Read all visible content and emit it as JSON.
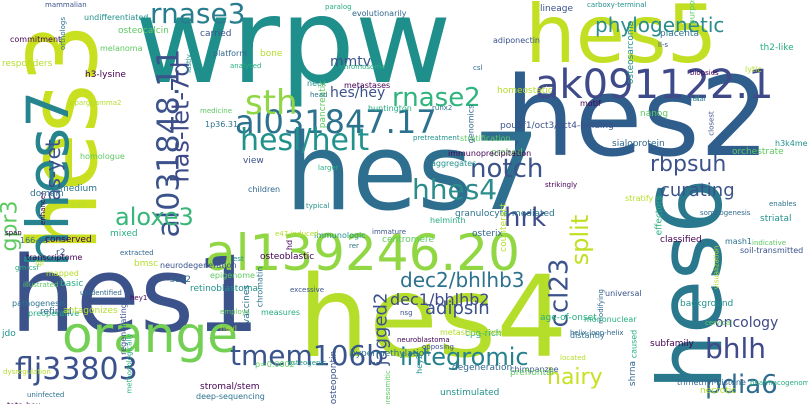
{
  "word_cloud": {
    "words": [
      {
        "text": "wrpw",
        "color": "#1f8f8c"
      },
      {
        "text": "hes2",
        "color": "#2f5d8c"
      },
      {
        "text": "hes4",
        "color": "#b5de2b"
      },
      {
        "text": "hes7",
        "color": "#2e6e8e"
      },
      {
        "text": "hes1",
        "color": "#3b528b"
      },
      {
        "text": "hes3",
        "color": "#c8e020"
      },
      {
        "text": "hes5",
        "color": "#c2df23"
      },
      {
        "text": "hes6",
        "color": "#2a788e"
      },
      {
        "text": "hhes7",
        "color": "#25848e"
      },
      {
        "text": "al139246.20",
        "color": "#90d743"
      },
      {
        "text": "orange",
        "color": "#73d055"
      },
      {
        "text": "ak091122.1",
        "color": "#3e4a89"
      },
      {
        "text": "al031847.17",
        "color": "#2c728e"
      },
      {
        "text": "al031848.11",
        "color": "#3b528b"
      },
      {
        "text": "hesl/helt",
        "color": "#21918c"
      },
      {
        "text": "sth",
        "color": "#8fd744"
      },
      {
        "text": "rnase3",
        "color": "#287d8e"
      },
      {
        "text": "rnase2",
        "color": "#30b47d"
      },
      {
        "text": "hhes4",
        "color": "#2c8c8c"
      },
      {
        "text": "flj33803",
        "color": "#3b518b"
      },
      {
        "text": "tmem106b",
        "color": "#39558c"
      },
      {
        "text": "integromic",
        "color": "#26818e"
      },
      {
        "text": "pdia6",
        "color": "#2f6c8e"
      },
      {
        "text": "ccl23",
        "color": "#3b528b"
      },
      {
        "text": "bhlh",
        "color": "#3e4a89"
      },
      {
        "text": "hrk",
        "color": "#3d4d8a"
      },
      {
        "text": "aloxe3",
        "color": "#37b679"
      },
      {
        "text": "split",
        "color": "#c2df23"
      },
      {
        "text": "notch",
        "color": "#3b528b"
      },
      {
        "text": "has-let-7d",
        "color": "#3e4989"
      },
      {
        "text": "hairy",
        "color": "#c7e020"
      },
      {
        "text": "gpr3",
        "color": "#5ec962"
      },
      {
        "text": "as-yet",
        "color": "#3b528b"
      },
      {
        "text": "rbpsuh",
        "color": "#3b528b"
      },
      {
        "text": "phylogenetic",
        "color": "#2c8c8c"
      },
      {
        "text": "curating",
        "color": "#3b528b"
      },
      {
        "text": "dec2/bhlhb3",
        "color": "#2c718e"
      },
      {
        "text": "dec1/bhlhb2",
        "color": "#3e4989"
      },
      {
        "text": "jagged2",
        "color": "#3b528b"
      },
      {
        "text": "adipsin",
        "color": "#3b528b"
      },
      {
        "text": "oncology",
        "color": "#3e4989"
      },
      {
        "text": "hes/hey",
        "color": "#3b528b"
      },
      {
        "text": "mmtv",
        "color": "#3b528b"
      }
    ],
    "minor_words": [
      "mammalian",
      "undifferentiated",
      "osteocalcin",
      "orthologs",
      "commitment",
      "responders",
      "paralog",
      "evolutionarily",
      "lineage",
      "carboxy-terminal",
      "purpose",
      "placenta",
      "biopsies",
      "lytic",
      "th2-like",
      "csl",
      "adiponectin",
      "osteosarcoma",
      "medicine",
      "1p36.31",
      "h3-lysine",
      "pparggamma2",
      "huntington",
      "sialoprotein",
      "closest",
      "h3k4me3",
      "nanog",
      "fetal",
      "motif",
      "homeostatic",
      "chromosome",
      "genomics",
      "pou5f1/oct3/oct4-binding",
      "pretreatment",
      "stratification",
      "granulocyte-mediated",
      "strikingly",
      "stratify",
      "effectors",
      "somitogenesis",
      "soil-transmitted",
      "striatal",
      "indicative",
      "mash1",
      "classified",
      "visualization",
      "helminth",
      "osterix",
      "immature",
      "immunologic",
      "centromere",
      "rer",
      "hd",
      "bmsc",
      "gm-csf",
      "166-aa",
      "r2",
      "est",
      "epigenome",
      "vaccines",
      "hey1",
      "heyl",
      "cpg-rich",
      "helix-loop-helix",
      "chimpanzee",
      "unstimulated",
      "presomitic",
      "deep-sequencing",
      "stromal/stem",
      "dysregulation",
      "preoperative",
      "refined",
      "nsg",
      "hey2",
      "prefrontal",
      "uninfected",
      "tata-box",
      "necrotic",
      "pharmacogenomic",
      "trimethyl-histone",
      "osteopontin",
      "osteogenic",
      "p=0.0002",
      "hypermethylation",
      "neuroblastoma",
      "metastasis-free",
      "age-of-onset",
      "modifying",
      "universal",
      "background",
      "cervical",
      "distantly",
      "subfamily",
      "located",
      "caused",
      "degeneration",
      "opposing",
      "aggregates",
      "probed",
      "runx2",
      "immunoprecipitation",
      "counteract",
      "larger",
      "children",
      "view",
      "typical",
      "homologue",
      "medium",
      "enhancer",
      "pair",
      "mixed",
      "extracted",
      "neurodegeneration",
      "retinoblastoma",
      "employs",
      "chromatin",
      "osteoblastic",
      "e47-induced",
      "measures",
      "sox2",
      "excessive",
      "neck",
      "pancreatic",
      "head",
      "metastases",
      "bone",
      "analysed",
      "platform",
      "carried",
      "lastly",
      "melanoma",
      "domain",
      "span",
      "mapped",
      "basic",
      "unidentified",
      "regenerating",
      "jdo",
      "illustrated",
      "pathogenesis",
      "conserved",
      "fgf",
      "mononuclear",
      "shrna",
      "ll-s",
      "ll",
      "orchestrate",
      "enables",
      "transcriptome",
      "antagonizes",
      "methodologically"
    ]
  }
}
